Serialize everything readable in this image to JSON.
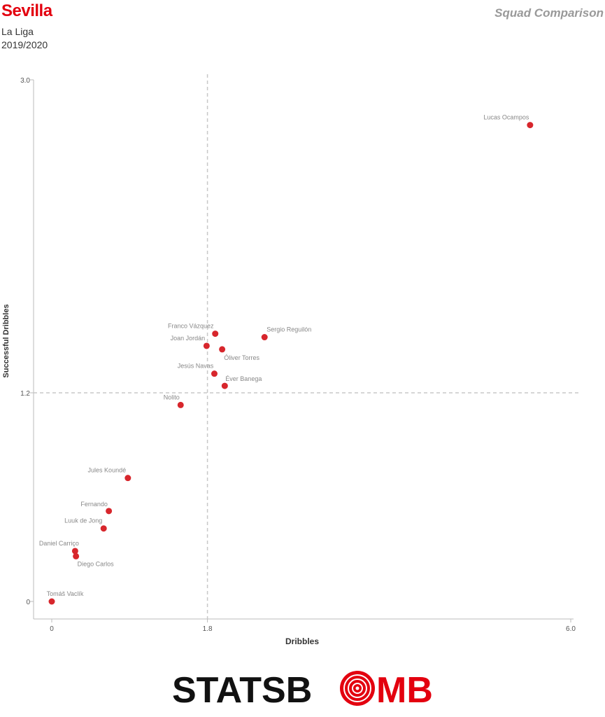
{
  "header": {
    "team": "Sevilla",
    "league": "La Liga",
    "season": "2019/2020",
    "report_title": "Squad Comparison"
  },
  "brand": {
    "logo_part1": "STATSB",
    "logo_part2": "MB",
    "dark_color": "#111111",
    "accent_color": "#e3000f"
  },
  "chart_data": {
    "type": "scatter",
    "xlabel": "Dribbles",
    "ylabel": "Successful Dribbles",
    "xlim": [
      0,
      6.0
    ],
    "ylim": [
      0,
      3.0
    ],
    "xticks": [
      {
        "value": 0,
        "label": "0"
      },
      {
        "value": 1.8,
        "label": "1.8"
      },
      {
        "value": 6.0,
        "label": "6.0"
      }
    ],
    "yticks": [
      {
        "value": 0,
        "label": "0"
      },
      {
        "value": 1.2,
        "label": "1.2"
      },
      {
        "value": 3.0,
        "label": "3.0"
      }
    ],
    "reference_lines": {
      "x": 1.8,
      "y": 1.2
    },
    "point_color": "#d7262c",
    "points": [
      {
        "name": "Lucas Ocampos",
        "x": 5.53,
        "y": 2.74
      },
      {
        "name": "Sergio Reguilón",
        "x": 2.46,
        "y": 1.52
      },
      {
        "name": "Franco Vázquez",
        "x": 1.89,
        "y": 1.54
      },
      {
        "name": "Joan Jordán",
        "x": 1.79,
        "y": 1.47
      },
      {
        "name": "Óliver Torres",
        "x": 1.97,
        "y": 1.45
      },
      {
        "name": "Jesús Navas",
        "x": 1.88,
        "y": 1.31
      },
      {
        "name": "Éver Banega",
        "x": 2.0,
        "y": 1.24
      },
      {
        "name": "Nolito",
        "x": 1.49,
        "y": 1.13
      },
      {
        "name": "Jules Koundé",
        "x": 0.88,
        "y": 0.71
      },
      {
        "name": "Fernando",
        "x": 0.66,
        "y": 0.52
      },
      {
        "name": "Luuk de Jong",
        "x": 0.6,
        "y": 0.42
      },
      {
        "name": "Daniel Carriço",
        "x": 0.27,
        "y": 0.29
      },
      {
        "name": "Diego Carlos",
        "x": 0.28,
        "y": 0.26
      },
      {
        "name": "Tomáš Vaclík",
        "x": 0.0,
        "y": 0.0
      }
    ]
  }
}
